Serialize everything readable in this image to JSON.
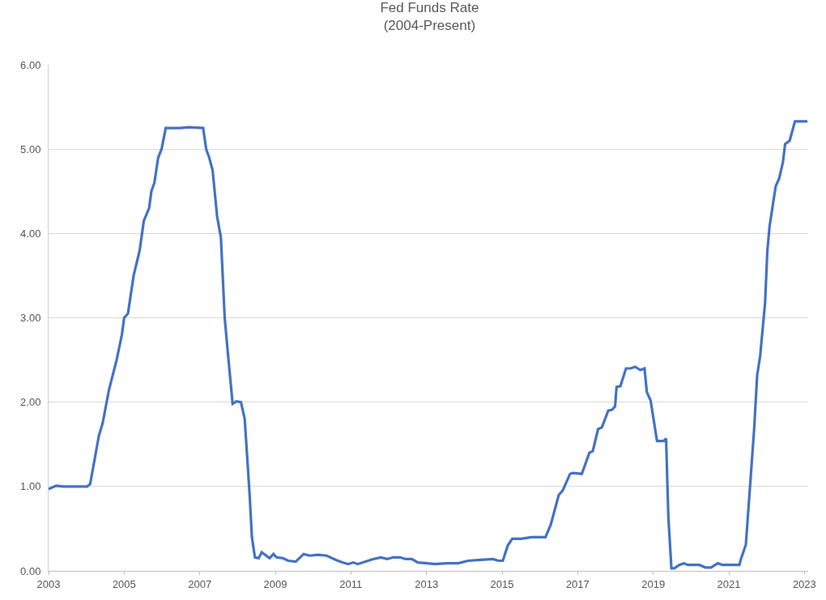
{
  "chart_data": {
    "type": "line",
    "title": "Fed Funds Rate",
    "subtitle": "(2004-Present)",
    "xlim": [
      2003,
      2023.1
    ],
    "xticks": [
      2003,
      2005,
      2007,
      2009,
      2011,
      2013,
      2015,
      2017,
      2019,
      2021,
      2023
    ],
    "ylim": [
      0,
      6
    ],
    "yticks": [
      {
        "value": 0,
        "label": "0.00"
      },
      {
        "value": 1,
        "label": "1.00"
      },
      {
        "value": 2,
        "label": "2.00"
      },
      {
        "value": 3,
        "label": "3.00"
      },
      {
        "value": 4,
        "label": "4.00"
      },
      {
        "value": 5,
        "label": "5.00"
      },
      {
        "value": 6,
        "label": "6.00"
      }
    ],
    "grid": "y",
    "marker": "none",
    "line_style": "solid",
    "series": [
      {
        "color": "#4472c4",
        "x": [
          2003.0,
          2003.2,
          2003.4,
          2004.02,
          2004.1,
          2004.19,
          2004.33,
          2004.43,
          2004.6,
          2004.8,
          2004.94,
          2005.0,
          2005.1,
          2005.25,
          2005.41,
          2005.52,
          2005.66,
          2005.72,
          2005.8,
          2005.9,
          2005.99,
          2006.1,
          2006.48,
          2006.72,
          2007.09,
          2007.17,
          2007.25,
          2007.34,
          2007.46,
          2007.56,
          2007.66,
          2007.74,
          2007.87,
          2007.97,
          2008.09,
          2008.19,
          2008.32,
          2008.38,
          2008.46,
          2008.56,
          2008.64,
          2008.85,
          2008.95,
          2009.03,
          2009.2,
          2009.34,
          2009.54,
          2009.75,
          2009.91,
          2010.12,
          2010.36,
          2010.6,
          2010.77,
          2010.93,
          2011.06,
          2011.18,
          2011.32,
          2011.59,
          2011.79,
          2011.96,
          2012.12,
          2012.3,
          2012.45,
          2012.61,
          2012.77,
          2013.02,
          2013.22,
          2013.53,
          2013.84,
          2014.1,
          2014.45,
          2014.76,
          2014.9,
          2015.02,
          2015.15,
          2015.27,
          2015.51,
          2015.78,
          2016.15,
          2016.29,
          2016.35,
          2016.5,
          2016.6,
          2016.8,
          2016.87,
          2017.11,
          2017.31,
          2017.4,
          2017.54,
          2017.64,
          2017.81,
          2017.91,
          2017.99,
          2018.03,
          2018.13,
          2018.28,
          2018.4,
          2018.52,
          2018.66,
          2018.77,
          2018.83,
          2018.93,
          2019.1,
          2019.28,
          2019.34,
          2019.4,
          2019.48,
          2019.56,
          2019.69,
          2019.81,
          2019.91,
          2020.22,
          2020.38,
          2020.53,
          2020.71,
          2020.83,
          2021.28,
          2021.32,
          2021.45,
          2021.55,
          2021.67,
          2021.75,
          2021.83,
          2021.96,
          2022.02,
          2022.08,
          2022.24,
          2022.33,
          2022.43,
          2022.49,
          2022.61,
          2022.75,
          2023.08
        ],
        "values": [
          0.97,
          1.01,
          1.0,
          1.0,
          1.03,
          1.25,
          1.6,
          1.75,
          2.15,
          2.5,
          2.8,
          3.0,
          3.05,
          3.5,
          3.8,
          4.15,
          4.3,
          4.5,
          4.6,
          4.9,
          5.0,
          5.25,
          5.25,
          5.26,
          5.25,
          5.0,
          4.9,
          4.75,
          4.2,
          3.95,
          3.0,
          2.6,
          1.98,
          2.01,
          2.0,
          1.8,
          0.9,
          0.4,
          0.16,
          0.15,
          0.22,
          0.15,
          0.2,
          0.16,
          0.15,
          0.12,
          0.11,
          0.2,
          0.18,
          0.19,
          0.18,
          0.13,
          0.1,
          0.08,
          0.1,
          0.08,
          0.1,
          0.14,
          0.16,
          0.14,
          0.16,
          0.16,
          0.14,
          0.14,
          0.1,
          0.09,
          0.08,
          0.09,
          0.09,
          0.12,
          0.13,
          0.14,
          0.12,
          0.12,
          0.3,
          0.38,
          0.38,
          0.4,
          0.4,
          0.55,
          0.65,
          0.9,
          0.95,
          1.15,
          1.16,
          1.15,
          1.4,
          1.42,
          1.68,
          1.7,
          1.9,
          1.91,
          1.95,
          2.18,
          2.19,
          2.4,
          2.4,
          2.42,
          2.38,
          2.4,
          2.12,
          2.02,
          1.54,
          1.54,
          1.57,
          0.64,
          0.03,
          0.03,
          0.07,
          0.09,
          0.07,
          0.07,
          0.04,
          0.04,
          0.09,
          0.07,
          0.07,
          0.14,
          0.31,
          0.93,
          1.68,
          2.32,
          2.55,
          3.18,
          3.8,
          4.09,
          4.56,
          4.65,
          4.84,
          5.06,
          5.1,
          5.33,
          5.33
        ]
      }
    ]
  }
}
